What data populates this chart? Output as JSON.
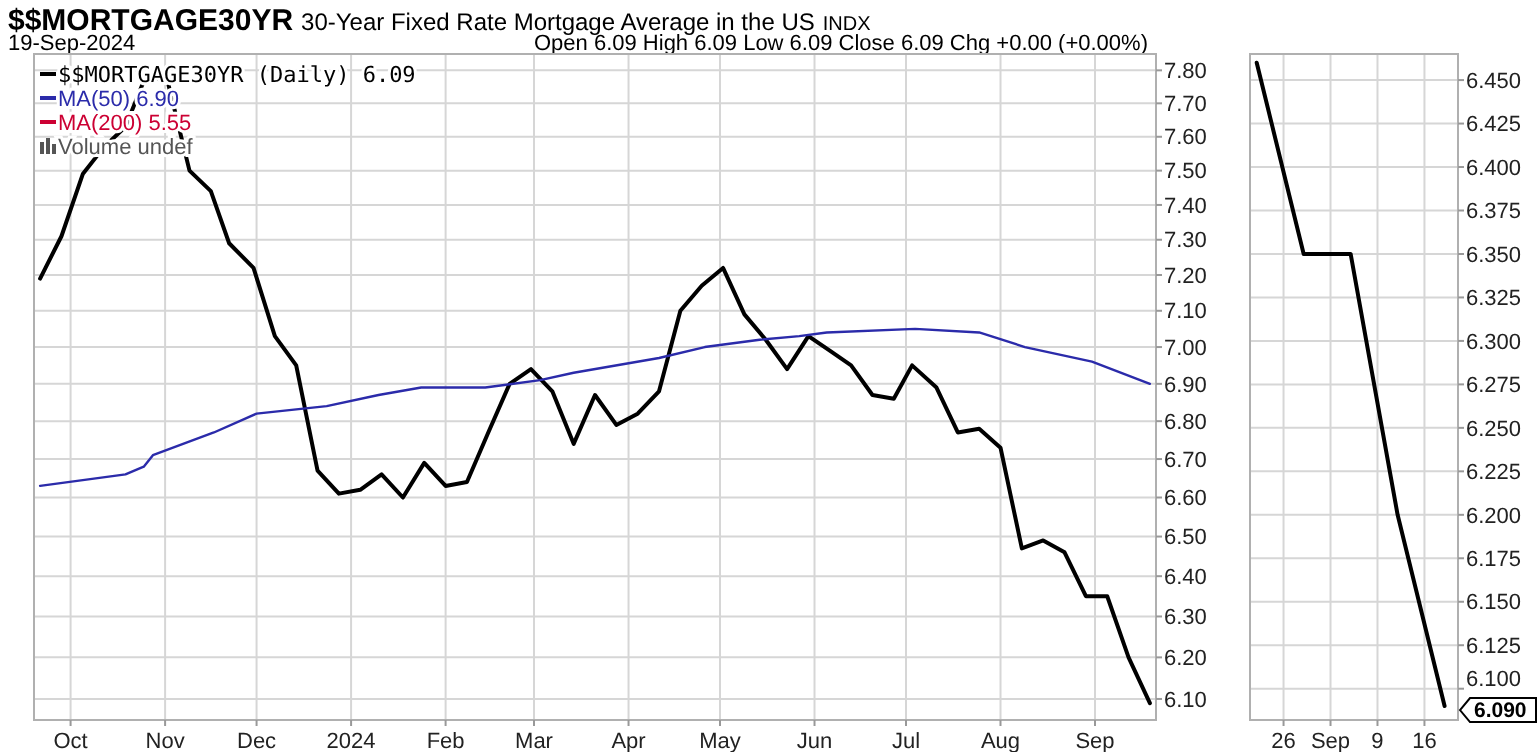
{
  "chart_data": [
    {
      "type": "line",
      "title": "$$MORTGAGE30YR",
      "subtitle": "30-Year Fixed Rate Mortgage Average in the US",
      "annotations": [
        "INDX",
        "19-Sep-2024",
        "Open 6.09  High 6.09  Low 6.09  Close 6.09  Chg +0.00 (+0.00%)",
        "Volume undef"
      ],
      "log": true,
      "grid": true,
      "legend": "top left",
      "xlim": [
        "2023-09-19",
        "2024-09-21"
      ],
      "xticks": [
        {
          "value": "2023-10-01",
          "label": "Oct"
        },
        {
          "value": "2023-11-01",
          "label": "Nov"
        },
        {
          "value": "2023-12-01",
          "label": "Dec"
        },
        {
          "value": "2024-01-01",
          "label": "2024"
        },
        {
          "value": "2024-02-01",
          "label": "Feb"
        },
        {
          "value": "2024-03-01",
          "label": "Mar"
        },
        {
          "value": "2024-04-01",
          "label": "Apr"
        },
        {
          "value": "2024-05-01",
          "label": "May"
        },
        {
          "value": "2024-06-01",
          "label": "Jun"
        },
        {
          "value": "2024-07-01",
          "label": "Jul"
        },
        {
          "value": "2024-08-01",
          "label": "Aug"
        },
        {
          "value": "2024-09-01",
          "label": "Sep"
        }
      ],
      "ylim": [
        6.05,
        7.85
      ],
      "yticks": [
        {
          "value": 6.1,
          "label": "6.10"
        },
        {
          "value": 6.2,
          "label": "6.20"
        },
        {
          "value": 6.3,
          "label": "6.30"
        },
        {
          "value": 6.4,
          "label": "6.40"
        },
        {
          "value": 6.5,
          "label": "6.50"
        },
        {
          "value": 6.6,
          "label": "6.60"
        },
        {
          "value": 6.7,
          "label": "6.70"
        },
        {
          "value": 6.8,
          "label": "6.80"
        },
        {
          "value": 6.9,
          "label": "6.90"
        },
        {
          "value": 7.0,
          "label": "7.00"
        },
        {
          "value": 7.1,
          "label": "7.10"
        },
        {
          "value": 7.2,
          "label": "7.20"
        },
        {
          "value": 7.3,
          "label": "7.30"
        },
        {
          "value": 7.4,
          "label": "7.40"
        },
        {
          "value": 7.5,
          "label": "7.50"
        },
        {
          "value": 7.6,
          "label": "7.60"
        },
        {
          "value": 7.7,
          "label": "7.70"
        },
        {
          "value": 7.8,
          "label": "7.80"
        }
      ],
      "series": [
        {
          "name": "$$MORTGAGE30YR (Daily) 6.09",
          "color": "#000000",
          "x": [
            "2023-09-21",
            "2023-09-28",
            "2023-10-05",
            "2023-10-12",
            "2023-10-19",
            "2023-10-26",
            "2023-11-02",
            "2023-11-09",
            "2023-11-16",
            "2023-11-22",
            "2023-11-30",
            "2023-12-07",
            "2023-12-14",
            "2023-12-21",
            "2023-12-28",
            "2024-01-04",
            "2024-01-11",
            "2024-01-18",
            "2024-01-25",
            "2024-02-01",
            "2024-02-08",
            "2024-02-15",
            "2024-02-22",
            "2024-02-29",
            "2024-03-07",
            "2024-03-14",
            "2024-03-21",
            "2024-03-28",
            "2024-04-04",
            "2024-04-11",
            "2024-04-18",
            "2024-04-25",
            "2024-05-02",
            "2024-05-09",
            "2024-05-16",
            "2024-05-23",
            "2024-05-30",
            "2024-06-06",
            "2024-06-13",
            "2024-06-20",
            "2024-06-27",
            "2024-07-03",
            "2024-07-11",
            "2024-07-18",
            "2024-07-25",
            "2024-08-01",
            "2024-08-08",
            "2024-08-15",
            "2024-08-22",
            "2024-08-29",
            "2024-09-05",
            "2024-09-12",
            "2024-09-19"
          ],
          "values": [
            7.19,
            7.31,
            7.49,
            7.57,
            7.63,
            7.79,
            7.76,
            7.5,
            7.44,
            7.29,
            7.22,
            7.03,
            6.95,
            6.67,
            6.61,
            6.62,
            6.66,
            6.6,
            6.69,
            6.63,
            6.64,
            6.77,
            6.9,
            6.94,
            6.88,
            6.74,
            6.87,
            6.79,
            6.82,
            6.88,
            7.1,
            7.17,
            7.22,
            7.09,
            7.02,
            6.94,
            7.03,
            6.99,
            6.95,
            6.87,
            6.86,
            6.95,
            6.89,
            6.77,
            6.78,
            6.73,
            6.47,
            6.49,
            6.46,
            6.35,
            6.35,
            6.2,
            6.09
          ]
        },
        {
          "name": "MA(50) 6.90",
          "color": "#2b2baa",
          "x": [
            "2023-09-21",
            "2023-10-19",
            "2023-10-25",
            "2023-10-28",
            "2023-11-17",
            "2023-12-01",
            "2023-12-24",
            "2024-01-10",
            "2024-01-24",
            "2024-02-14",
            "2024-03-03",
            "2024-03-14",
            "2024-04-11",
            "2024-04-26",
            "2024-05-14",
            "2024-05-27",
            "2024-06-05",
            "2024-07-04",
            "2024-07-25",
            "2024-08-09",
            "2024-08-31",
            "2024-09-19"
          ],
          "values": [
            6.63,
            6.66,
            6.68,
            6.71,
            6.77,
            6.82,
            6.84,
            6.87,
            6.89,
            6.89,
            6.91,
            6.93,
            6.97,
            7.0,
            7.02,
            7.03,
            7.04,
            7.05,
            7.04,
            7.0,
            6.96,
            6.9
          ]
        },
        {
          "name": "MA(200) 5.55",
          "color": "#cc0033"
        }
      ]
    },
    {
      "type": "line",
      "grid": true,
      "annotations": [
        {
          "text": "6.090",
          "x": "2024-09-19",
          "y": 6.09
        }
      ],
      "xlim": [
        "2024-08-21",
        "2024-09-21"
      ],
      "xticks": [
        {
          "value": "2024-08-26",
          "label": "26"
        },
        {
          "value": "2024-09-02",
          "label": "Sep"
        },
        {
          "value": "2024-09-09",
          "label": "9"
        },
        {
          "value": "2024-09-16",
          "label": "16"
        }
      ],
      "ylim": [
        6.082,
        6.465
      ],
      "yticks": [
        {
          "value": 6.1,
          "label": "6.100"
        },
        {
          "value": 6.125,
          "label": "6.125"
        },
        {
          "value": 6.15,
          "label": "6.150"
        },
        {
          "value": 6.175,
          "label": "6.175"
        },
        {
          "value": 6.2,
          "label": "6.200"
        },
        {
          "value": 6.225,
          "label": "6.225"
        },
        {
          "value": 6.25,
          "label": "6.250"
        },
        {
          "value": 6.275,
          "label": "6.275"
        },
        {
          "value": 6.3,
          "label": "6.300"
        },
        {
          "value": 6.325,
          "label": "6.325"
        },
        {
          "value": 6.35,
          "label": "6.350"
        },
        {
          "value": 6.375,
          "label": "6.375"
        },
        {
          "value": 6.4,
          "label": "6.400"
        },
        {
          "value": 6.425,
          "label": "6.425"
        },
        {
          "value": 6.45,
          "label": "6.450"
        }
      ],
      "series": [
        {
          "color": "#000000",
          "x": [
            "2024-08-22",
            "2024-08-29",
            "2024-09-05",
            "2024-09-12",
            "2024-09-19"
          ],
          "values": [
            6.46,
            6.35,
            6.35,
            6.2,
            6.09
          ]
        }
      ]
    }
  ]
}
